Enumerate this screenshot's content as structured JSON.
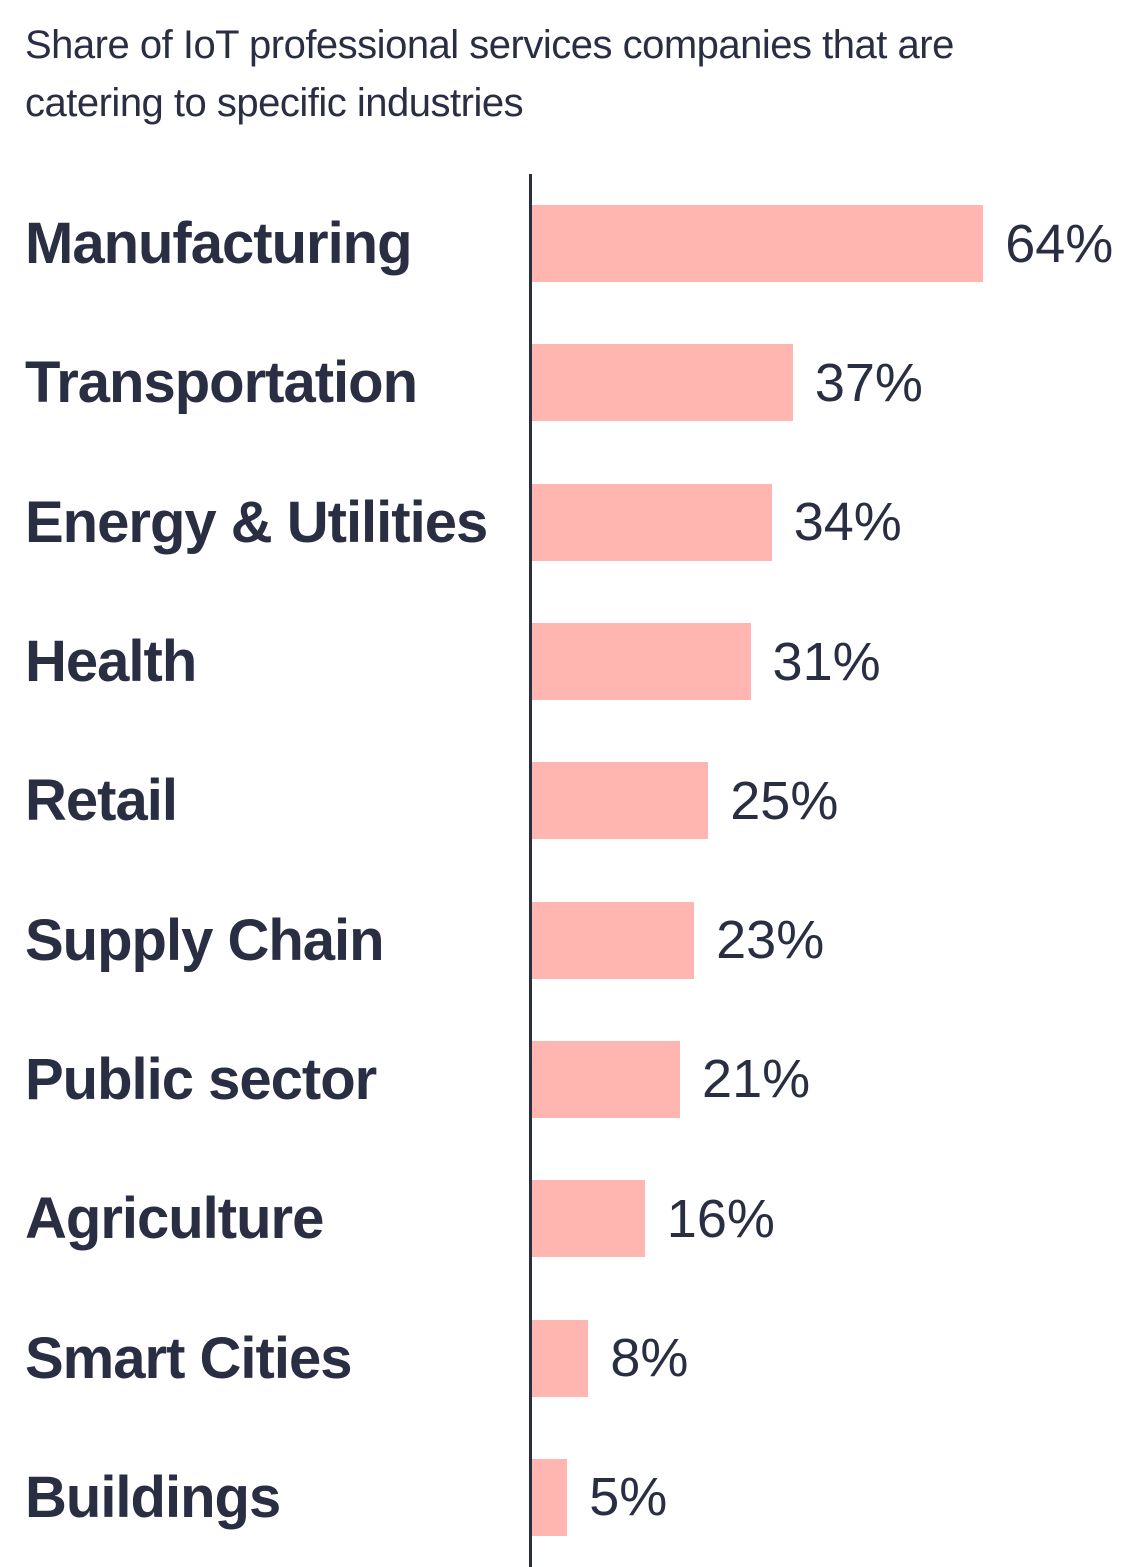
{
  "title": {
    "line1": "Share of IoT professional services companies that are",
    "line2": "catering to specific industries"
  },
  "colors": {
    "bar": "#FFB5B0",
    "text": "#2A2E43",
    "axis": "#2A2E43",
    "background": "#FFFFFF"
  },
  "chart_data": {
    "type": "bar",
    "orientation": "horizontal",
    "title": "Share of IoT professional services companies that are catering to specific industries",
    "categories": [
      "Manufacturing",
      "Transportation",
      "Energy & Utilities",
      "Health",
      "Retail",
      "Supply Chain",
      "Public sector",
      "Agriculture",
      "Smart Cities",
      "Buildings"
    ],
    "values": [
      64,
      37,
      34,
      31,
      25,
      23,
      21,
      16,
      8,
      5
    ],
    "value_labels": [
      "64%",
      "37%",
      "34%",
      "31%",
      "25%",
      "23%",
      "21%",
      "16%",
      "8%",
      "5%"
    ],
    "unit": "%",
    "xlabel": "",
    "ylabel": "",
    "xlim": [
      0,
      87
    ],
    "grid": false,
    "legend": false
  }
}
